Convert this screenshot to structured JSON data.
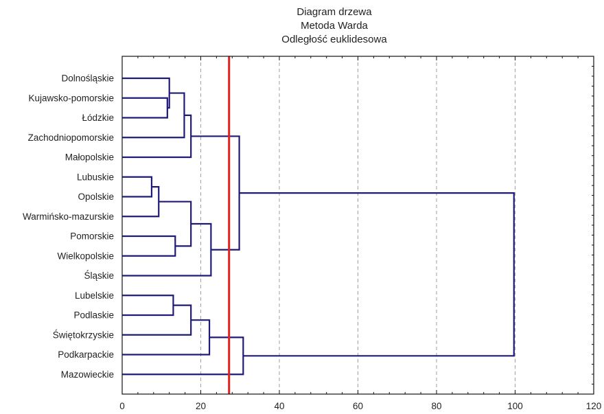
{
  "chart_data": {
    "type": "dendrogram",
    "title_lines": [
      "Diagram drzewa",
      "Metoda Warda",
      "Odległość euklidesowa"
    ],
    "orientation": "horizontal",
    "xlim": [
      0,
      120
    ],
    "x_ticks": [
      0,
      20,
      40,
      60,
      80,
      100,
      120
    ],
    "grid_x": [
      20,
      40,
      60,
      80,
      100
    ],
    "leaves": [
      "Dolnośląskie",
      "Kujawsko-pomorskie",
      "Łódzkie",
      "Zachodniopomorskie",
      "Małopolskie",
      "Lubuskie",
      "Opolskie",
      "Warmińsko-mazurskie",
      "Pomorskie",
      "Wielkopolskie",
      "Śląskie",
      "Lubelskie",
      "Podlaskie",
      "Świętokrzyskie",
      "Podkarpackie",
      "Mazowieckie"
    ],
    "merges": [
      {
        "a": "L:Kujawsko-pomorskie",
        "b": "L:Łódzkie",
        "height": 11.5,
        "id": "m1"
      },
      {
        "a": "L:Dolnośląskie",
        "b": "N:m1",
        "height": 12.0,
        "id": "m2"
      },
      {
        "a": "N:m2",
        "b": "L:Zachodniopomorskie",
        "height": 15.8,
        "id": "m3"
      },
      {
        "a": "N:m3",
        "b": "L:Małopolskie",
        "height": 17.5,
        "id": "m4"
      },
      {
        "a": "L:Lubuskie",
        "b": "L:Opolskie",
        "height": 7.5,
        "id": "m5"
      },
      {
        "a": "N:m5",
        "b": "L:Warmińsko-mazurskie",
        "height": 9.3,
        "id": "m6"
      },
      {
        "a": "L:Pomorskie",
        "b": "L:Wielkopolskie",
        "height": 13.5,
        "id": "m7"
      },
      {
        "a": "N:m6",
        "b": "N:m7",
        "height": 17.5,
        "id": "m8"
      },
      {
        "a": "N:m8",
        "b": "L:Śląskie",
        "height": 22.6,
        "id": "m9"
      },
      {
        "a": "N:m4",
        "b": "N:m9",
        "height": 29.8,
        "id": "m10"
      },
      {
        "a": "L:Lubelskie",
        "b": "L:Podlaskie",
        "height": 13.0,
        "id": "m11"
      },
      {
        "a": "N:m11",
        "b": "L:Świętokrzyskie",
        "height": 17.5,
        "id": "m12"
      },
      {
        "a": "N:m12",
        "b": "L:Podkarpackie",
        "height": 22.2,
        "id": "m13"
      },
      {
        "a": "N:m13",
        "b": "L:Mazowieckie",
        "height": 30.8,
        "id": "m14"
      },
      {
        "a": "N:m10",
        "b": "N:m14",
        "height": 99.7,
        "id": "m15"
      }
    ],
    "cut_line": {
      "x": 27.2,
      "color": "#e0201c"
    },
    "colors": {
      "links": "#1f1a78",
      "cut": "#e0201c",
      "grid": "#888888",
      "frame": "#111111"
    },
    "grid": true
  }
}
